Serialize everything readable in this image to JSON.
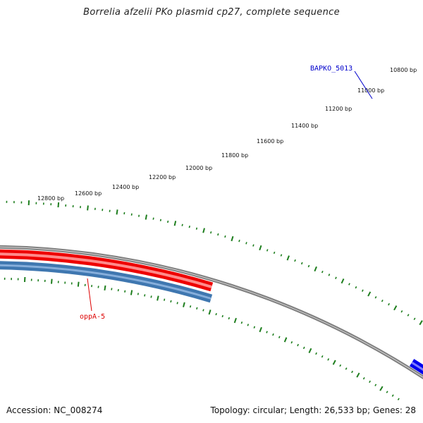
{
  "title": "Borrelia afzelii PKo plasmid cp27, complete sequence",
  "footer": {
    "accession": "Accession: NC_008274",
    "summary": "Topology: circular; Length: 26,533 bp; Genes: 28"
  },
  "colors": {
    "tick": "#1e7e1e",
    "backbone": "#808080",
    "forward_gene": "#ee0000",
    "reverse_gene": "#3f77b0",
    "highlight_gene": "#0000ee"
  },
  "scale": {
    "labels": [
      "10800 bp",
      "11000 bp",
      "11200 bp",
      "11400 bp",
      "11600 bp",
      "11800 bp",
      "12000 bp",
      "12200 bp",
      "12400 bp",
      "12600 bp",
      "12800 bp"
    ]
  },
  "genes": [
    {
      "label": "BAPKO_5013",
      "strand": "forward",
      "label_color": "#0000cc"
    },
    {
      "label": "oppA-5",
      "strand": "forward",
      "label_color": "#dd0000"
    },
    {
      "label": "",
      "strand": "reverse",
      "label_color": ""
    }
  ]
}
